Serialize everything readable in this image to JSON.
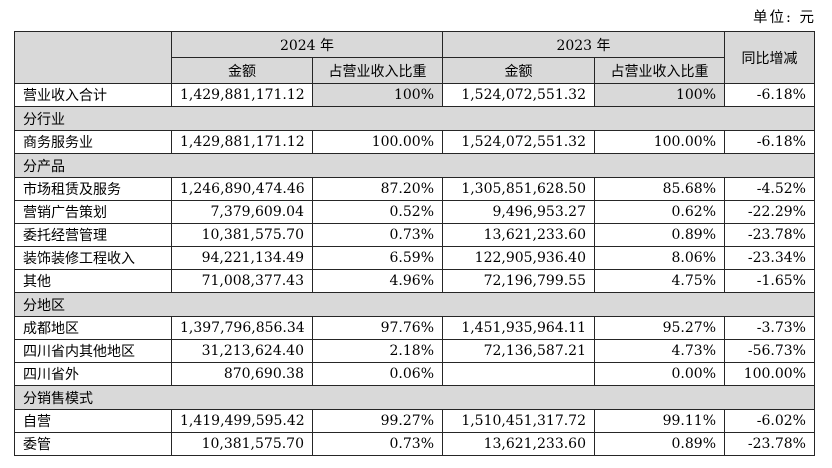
{
  "unit_label": "单位: 元",
  "colors": {
    "header_bg": "#d9d9d9",
    "section_bg": "#d9d9d9",
    "border": "#262626",
    "text": "#000000"
  },
  "table": {
    "header": {
      "corner": "",
      "col_2024": "2024 年",
      "col_2023": "2023 年",
      "yoy": "同比增减",
      "amount": "金额",
      "ratio": "占营业收入比重"
    },
    "rows": [
      {
        "type": "data",
        "tall": true,
        "ratio_gray": true,
        "label": "营业收入合计",
        "amount_2024": "1,429,881,171.12",
        "ratio_2024": "100%",
        "amount_2023": "1,524,072,551.32",
        "ratio_2023": "100%",
        "yoy": "-6.18%"
      },
      {
        "type": "section",
        "label": "分行业"
      },
      {
        "type": "data",
        "label": "商务服务业",
        "amount_2024": "1,429,881,171.12",
        "ratio_2024": "100.00%",
        "amount_2023": "1,524,072,551.32",
        "ratio_2023": "100.00%",
        "yoy": "-6.18%"
      },
      {
        "type": "section",
        "label": "分产品"
      },
      {
        "type": "data",
        "label": "市场租赁及服务",
        "amount_2024": "1,246,890,474.46",
        "ratio_2024": "87.20%",
        "amount_2023": "1,305,851,628.50",
        "ratio_2023": "85.68%",
        "yoy": "-4.52%"
      },
      {
        "type": "data",
        "label": "营销广告策划",
        "amount_2024": "7,379,609.04",
        "ratio_2024": "0.52%",
        "amount_2023": "9,496,953.27",
        "ratio_2023": "0.62%",
        "yoy": "-22.29%"
      },
      {
        "type": "data",
        "label": "委托经营管理",
        "amount_2024": "10,381,575.70",
        "ratio_2024": "0.73%",
        "amount_2023": "13,621,233.60",
        "ratio_2023": "0.89%",
        "yoy": "-23.78%"
      },
      {
        "type": "data",
        "label": "装饰装修工程收入",
        "amount_2024": "94,221,134.49",
        "ratio_2024": "6.59%",
        "amount_2023": "122,905,936.40",
        "ratio_2023": "8.06%",
        "yoy": "-23.34%"
      },
      {
        "type": "data",
        "label": "其他",
        "amount_2024": "71,008,377.43",
        "ratio_2024": "4.96%",
        "amount_2023": "72,196,799.55",
        "ratio_2023": "4.75%",
        "yoy": "-1.65%"
      },
      {
        "type": "section",
        "label": "分地区"
      },
      {
        "type": "data",
        "label": "成都地区",
        "amount_2024": "1,397,796,856.34",
        "ratio_2024": "97.76%",
        "amount_2023": "1,451,935,964.11",
        "ratio_2023": "95.27%",
        "yoy": "-3.73%"
      },
      {
        "type": "data",
        "label": "四川省内其他地区",
        "amount_2024": "31,213,624.40",
        "ratio_2024": "2.18%",
        "amount_2023": "72,136,587.21",
        "ratio_2023": "4.73%",
        "yoy": "-56.73%"
      },
      {
        "type": "data",
        "label": "四川省外",
        "amount_2024": "870,690.38",
        "ratio_2024": "0.06%",
        "amount_2023": "",
        "ratio_2023": "0.00%",
        "yoy": "100.00%"
      },
      {
        "type": "section",
        "label": "分销售模式"
      },
      {
        "type": "data",
        "label": "自营",
        "amount_2024": "1,419,499,595.42",
        "ratio_2024": "99.27%",
        "amount_2023": "1,510,451,317.72",
        "ratio_2023": "99.11%",
        "yoy": "-6.02%"
      },
      {
        "type": "data",
        "label": "委管",
        "amount_2024": "10,381,575.70",
        "ratio_2024": "0.73%",
        "amount_2023": "13,621,233.60",
        "ratio_2023": "0.89%",
        "yoy": "-23.78%"
      }
    ]
  }
}
